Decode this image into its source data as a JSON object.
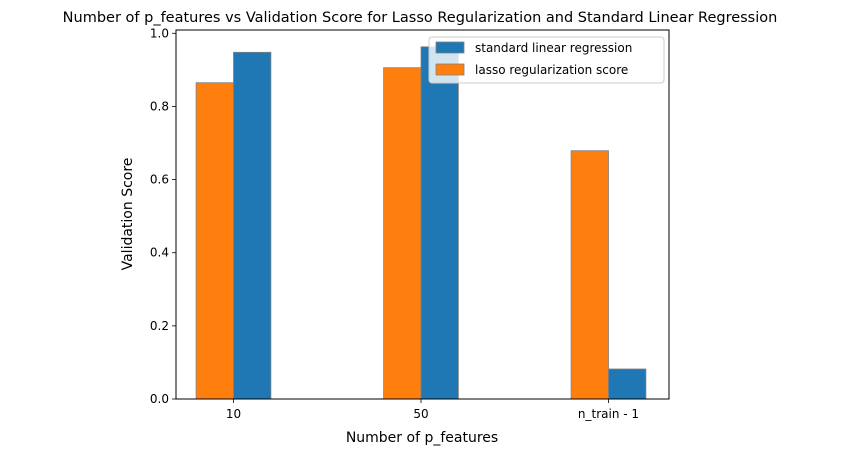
{
  "chart_data": {
    "type": "bar",
    "title": "Number of p_features vs Validation Score for Lasso Regularization and Standard Linear Regression",
    "xlabel": "Number of p_features",
    "ylabel": "Validation Score",
    "categories": [
      "10",
      "50",
      "n_train - 1"
    ],
    "series": [
      {
        "name": "lasso regularization score",
        "color": "#ff7f0e",
        "values": [
          0.865,
          0.906,
          0.679
        ]
      },
      {
        "name": "standard linear regression",
        "color": "#1f77b4",
        "values": [
          0.948,
          0.963,
          0.082
        ]
      }
    ],
    "ylim": [
      0,
      1.0
    ],
    "yticks": [
      0.0,
      0.2,
      0.4,
      0.6,
      0.8,
      1.0
    ],
    "ytick_labels": [
      "0.0",
      "0.2",
      "0.4",
      "0.6",
      "0.8",
      "1.0"
    ],
    "legend_entries": [
      "standard linear regression",
      "lasso regularization score"
    ],
    "legend_position": "top-right",
    "grid": false,
    "bar_edge_color": "#808080"
  }
}
